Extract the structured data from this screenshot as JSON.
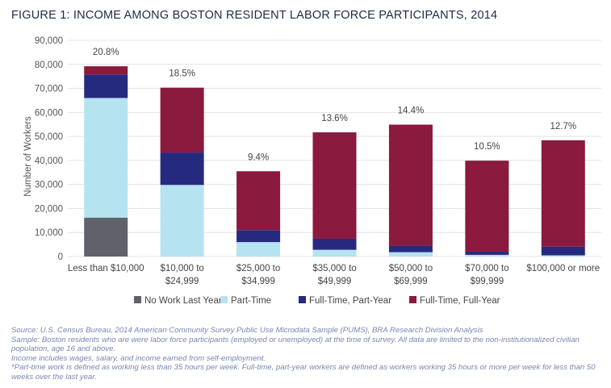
{
  "figure": {
    "title": "FIGURE 1: INCOME AMONG BOSTON RESIDENT LABOR FORCE PARTICIPANTS, 2014",
    "notes": [
      "Source: U.S. Census Bureau, 2014 American Community Survey Public Use Microdata Sample (PUMS), BRA Research Division Analysis",
      "Sample: Boston residents who are were labor force participants (employed or unemployed) at the time of survey. All data are limited to the non-institutionalized civilian population, age 16 and above.",
      "Income includes wages, salary, and income earned from self-employment.",
      "*Part-time work is defined as working less than 35 hours per week. Full-time, part-year workers are defined as workers working 35 hours or more per week for less than 50 weeks over the last year."
    ]
  },
  "chart_data": {
    "type": "bar",
    "stacked": true,
    "title": "FIGURE 1: INCOME AMONG BOSTON RESIDENT LABOR FORCE PARTICIPANTS, 2014",
    "ylabel": "Number of Workers",
    "xlabel": "",
    "ylim": [
      0,
      90000
    ],
    "yticks": [
      0,
      10000,
      20000,
      30000,
      40000,
      50000,
      60000,
      70000,
      80000,
      90000
    ],
    "ytick_labels": [
      "0",
      "10,000",
      "20,000",
      "30,000",
      "40,000",
      "50,000",
      "60,000",
      "70,000",
      "80,000",
      "90,000"
    ],
    "grid": true,
    "legend_position": "bottom",
    "categories": [
      [
        "Less than $10,000"
      ],
      [
        "$10,000 to",
        "$24,999"
      ],
      [
        "$25,000 to",
        "$34,999"
      ],
      [
        "$35,000 to",
        "$49,999"
      ],
      [
        "$50,000 to",
        "$69,999"
      ],
      [
        "$70,000 to",
        "$99,999"
      ],
      [
        "$100,000 or more"
      ]
    ],
    "percent_labels": [
      "20.8%",
      "18.5%",
      "9.4%",
      "13.6%",
      "14.4%",
      "10.5%",
      "12.7%"
    ],
    "series": [
      {
        "name": "No Work Last Year",
        "color": "#616169",
        "values": [
          16200,
          0,
          0,
          0,
          0,
          0,
          0
        ]
      },
      {
        "name": "Part-Time",
        "color": "#b5e3f0",
        "values": [
          49800,
          29800,
          6000,
          2800,
          1800,
          700,
          500
        ]
      },
      {
        "name": "Full-Time, Part-Year",
        "color": "#262a7f",
        "values": [
          9800,
          13500,
          5000,
          4600,
          2700,
          1300,
          3600
        ]
      },
      {
        "name": "Full-Time, Full-Year",
        "color": "#8a1a3e",
        "values": [
          3400,
          27000,
          24500,
          44300,
          50400,
          37900,
          44300
        ]
      }
    ]
  }
}
